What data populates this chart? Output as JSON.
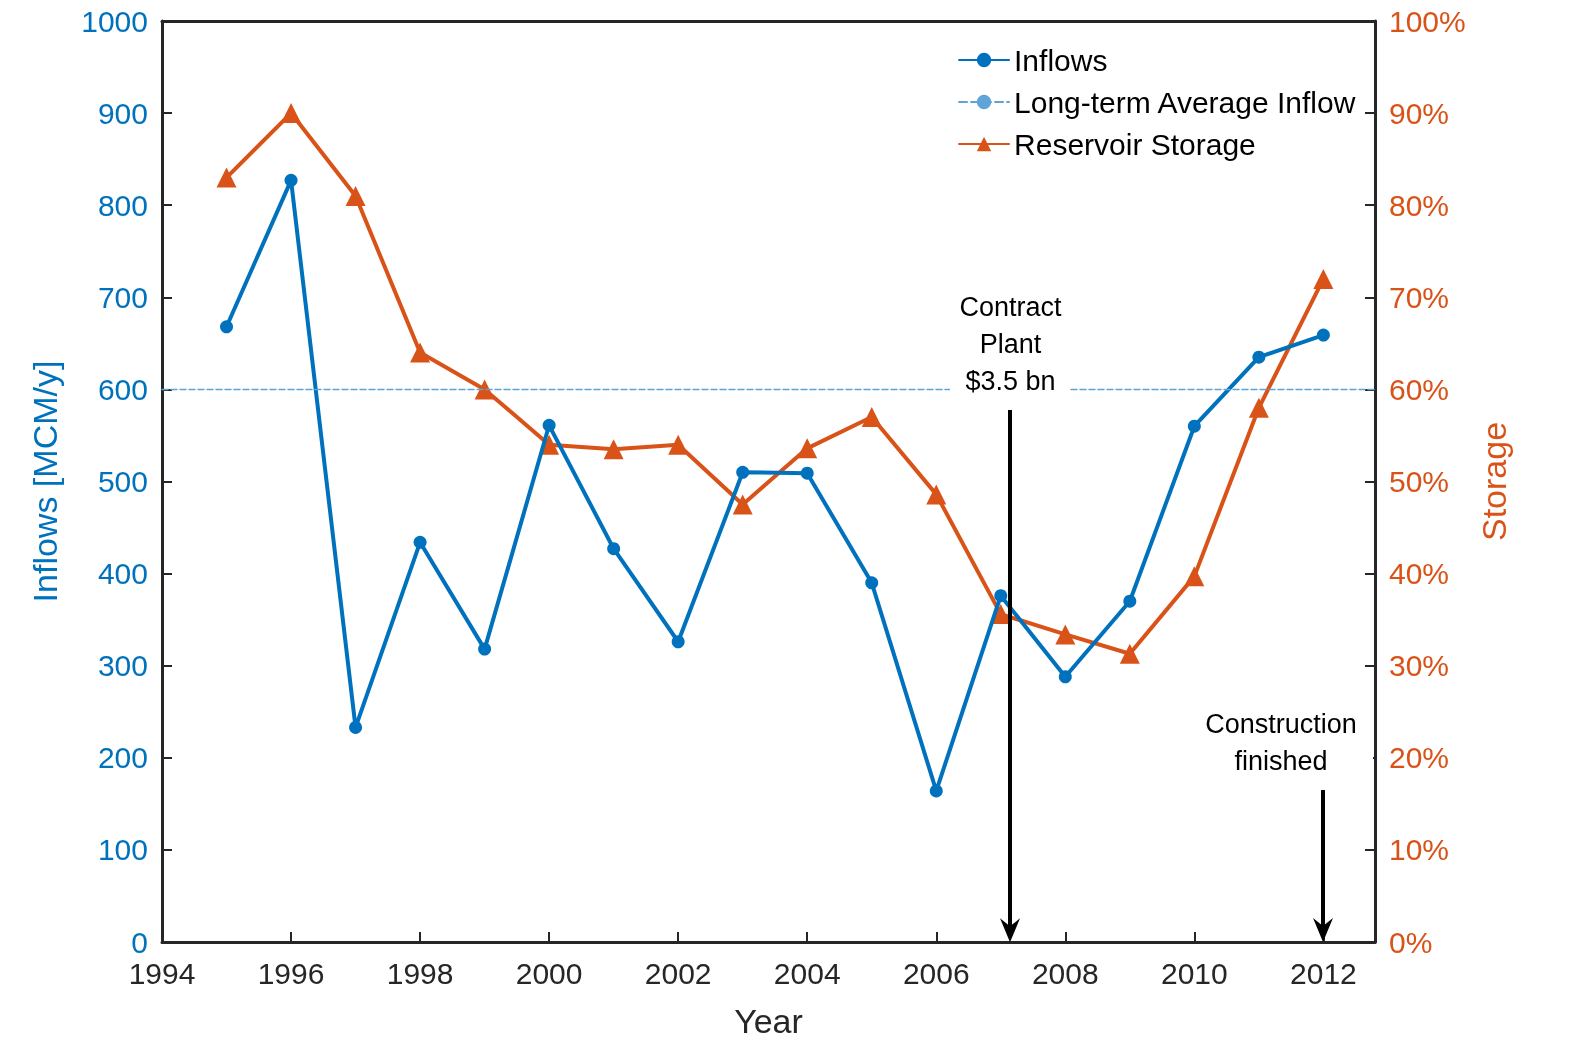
{
  "chart_data": {
    "type": "line",
    "xlabel": "Year",
    "ylabel": "Inflows [MCM/y]",
    "y2label": "Storage",
    "x": [
      1995,
      1996,
      1997,
      1998,
      1999,
      2000,
      2001,
      2002,
      2003,
      2004,
      2005,
      2006,
      2007,
      2008,
      2009,
      2010,
      2011,
      2012
    ],
    "series": [
      {
        "name": "Inflows",
        "color": "#0072bd",
        "marker": "circle",
        "line_style": "solid",
        "values": [
          668,
          827,
          233,
          434,
          318,
          561,
          427,
          326,
          510,
          509,
          390,
          164,
          376,
          288,
          370,
          560,
          635,
          659
        ]
      },
      {
        "name": "Long-term Average Inflow",
        "color": "#5fa4d6",
        "marker": "none",
        "line_style": "dashed",
        "x": [
          1994,
          2012.8
        ],
        "values": [
          600,
          600
        ]
      },
      {
        "name": "Reservoir Storage",
        "color": "#d95319",
        "marker": "triangle",
        "line_style": "solid",
        "axis": "y2",
        "values": [
          83,
          90,
          81,
          64,
          60,
          54,
          53.5,
          54,
          47.5,
          53.6,
          57,
          48.6,
          35.6,
          33.4,
          31.3,
          39.7,
          58,
          72
        ]
      }
    ],
    "annotations": [
      "Contract Plant $3.5 bn",
      "Construction finished"
    ],
    "xlim": [
      1994,
      2012.8
    ],
    "xticks": [
      1994,
      1996,
      1998,
      2000,
      2002,
      2004,
      2006,
      2008,
      2010,
      2012
    ],
    "ylim": [
      0,
      1000
    ],
    "yticks": [
      0,
      100,
      200,
      300,
      400,
      500,
      600,
      700,
      800,
      900,
      1000
    ],
    "y2lim": [
      0,
      100
    ],
    "y2ticks": [
      {
        "value": 0,
        "label": "0%"
      },
      {
        "value": 10,
        "label": "10%"
      },
      {
        "value": 20,
        "label": "20%"
      },
      {
        "value": 30,
        "label": "30%"
      },
      {
        "value": 40,
        "label": "40%"
      },
      {
        "value": 50,
        "label": "50%"
      },
      {
        "value": 60,
        "label": "60%"
      },
      {
        "value": 70,
        "label": "70%"
      },
      {
        "value": 80,
        "label": "80%"
      },
      {
        "value": 90,
        "label": "90%"
      },
      {
        "value": 100,
        "label": "100%"
      }
    ],
    "grid": false,
    "legend": "top right"
  }
}
